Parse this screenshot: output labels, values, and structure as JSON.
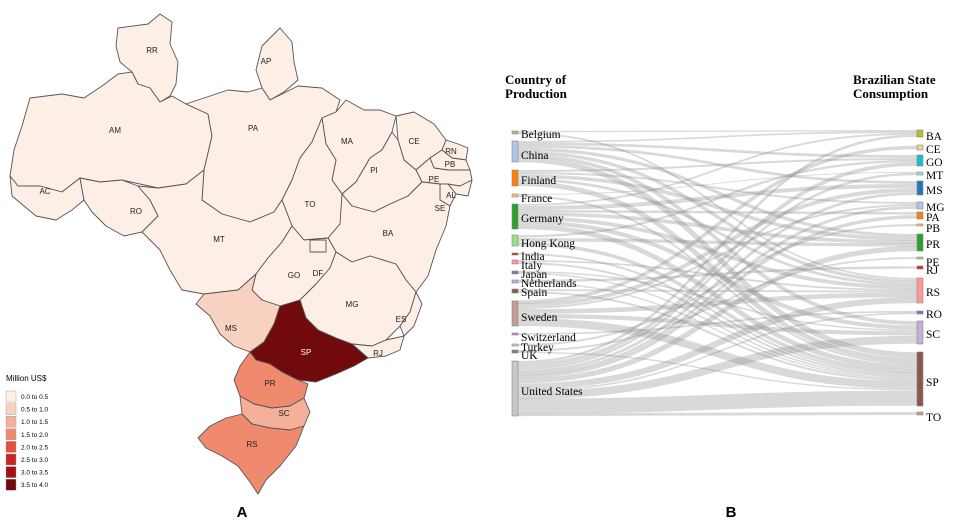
{
  "map": {
    "panel_label": "A",
    "legend": {
      "title": "Million US$",
      "classes": [
        {
          "label": "0.0 to 0.5",
          "color": "#fdeee6"
        },
        {
          "label": "0.5 to 1.0",
          "color": "#f8d2c1"
        },
        {
          "label": "1.0 to 1.5",
          "color": "#f4b099"
        },
        {
          "label": "1.5 to 2.0",
          "color": "#ef8a6f"
        },
        {
          "label": "2.0 to 2.5",
          "color": "#e4503c"
        },
        {
          "label": "2.5 to 3.0",
          "color": "#cc2222"
        },
        {
          "label": "3.0 to 3.5",
          "color": "#a51015"
        },
        {
          "label": "3.5 to 4.0",
          "color": "#700a0d"
        }
      ]
    },
    "states": [
      {
        "code": "RR",
        "class": 0
      },
      {
        "code": "AP",
        "class": 0
      },
      {
        "code": "AM",
        "class": 0
      },
      {
        "code": "PA",
        "class": 0
      },
      {
        "code": "MA",
        "class": 0
      },
      {
        "code": "CE",
        "class": 0
      },
      {
        "code": "RN",
        "class": 0
      },
      {
        "code": "PB",
        "class": 0
      },
      {
        "code": "PE",
        "class": 0
      },
      {
        "code": "AL",
        "class": 0
      },
      {
        "code": "SE",
        "class": 0
      },
      {
        "code": "PI",
        "class": 0
      },
      {
        "code": "AC",
        "class": 0
      },
      {
        "code": "RO",
        "class": 0
      },
      {
        "code": "TO",
        "class": 0
      },
      {
        "code": "BA",
        "class": 0
      },
      {
        "code": "MT",
        "class": 0
      },
      {
        "code": "GO",
        "class": 0
      },
      {
        "code": "DF",
        "class": 0
      },
      {
        "code": "MG",
        "class": 0
      },
      {
        "code": "ES",
        "class": 0
      },
      {
        "code": "RJ",
        "class": 0
      },
      {
        "code": "MS",
        "class": 1
      },
      {
        "code": "SP",
        "class": 7
      },
      {
        "code": "PR",
        "class": 3
      },
      {
        "code": "SC",
        "class": 2
      },
      {
        "code": "RS",
        "class": 3
      }
    ]
  },
  "sankey": {
    "panel_label": "B",
    "left_title": [
      "Country of",
      "Production"
    ],
    "right_title": [
      "Brazilian State",
      "Consumption"
    ],
    "sources": [
      {
        "name": "Belgium",
        "color": "#b0b0b0"
      },
      {
        "name": "China",
        "color": "#aec7e8"
      },
      {
        "name": "Finland",
        "color": "#ff7f0e"
      },
      {
        "name": "France",
        "color": "#ffbb78"
      },
      {
        "name": "Germany",
        "color": "#2ca02c"
      },
      {
        "name": "Hong Kong",
        "color": "#98df8a"
      },
      {
        "name": "India",
        "color": "#d62728"
      },
      {
        "name": "Italy",
        "color": "#ff9896"
      },
      {
        "name": "Japan",
        "color": "#9467bd"
      },
      {
        "name": "Netherlands",
        "color": "#c5b0d5"
      },
      {
        "name": "Spain",
        "color": "#8c564b"
      },
      {
        "name": "Sweden",
        "color": "#c49c94"
      },
      {
        "name": "Switzerland",
        "color": "#e377c2"
      },
      {
        "name": "Turkey",
        "color": "#f7b6d2"
      },
      {
        "name": "UK",
        "color": "#7f7f7f"
      },
      {
        "name": "United States",
        "color": "#c7c7c7"
      }
    ],
    "targets": [
      {
        "name": "BA",
        "color": "#bcbd22"
      },
      {
        "name": "CE",
        "color": "#dbdb8d"
      },
      {
        "name": "GO",
        "color": "#17becf"
      },
      {
        "name": "MT",
        "color": "#9edae5"
      },
      {
        "name": "MS",
        "color": "#1f77b4"
      },
      {
        "name": "MG",
        "color": "#aec7e8"
      },
      {
        "name": "PA",
        "color": "#ff7f0e"
      },
      {
        "name": "PB",
        "color": "#ffbb78"
      },
      {
        "name": "PR",
        "color": "#2ca02c"
      },
      {
        "name": "PE",
        "color": "#98df8a"
      },
      {
        "name": "RJ",
        "color": "#d62728"
      },
      {
        "name": "RS",
        "color": "#ff9896"
      },
      {
        "name": "RO",
        "color": "#9467bd"
      },
      {
        "name": "SC",
        "color": "#c5b0d5"
      },
      {
        "name": "SP",
        "color": "#8c564b"
      },
      {
        "name": "TO",
        "color": "#c49c94"
      }
    ]
  }
}
